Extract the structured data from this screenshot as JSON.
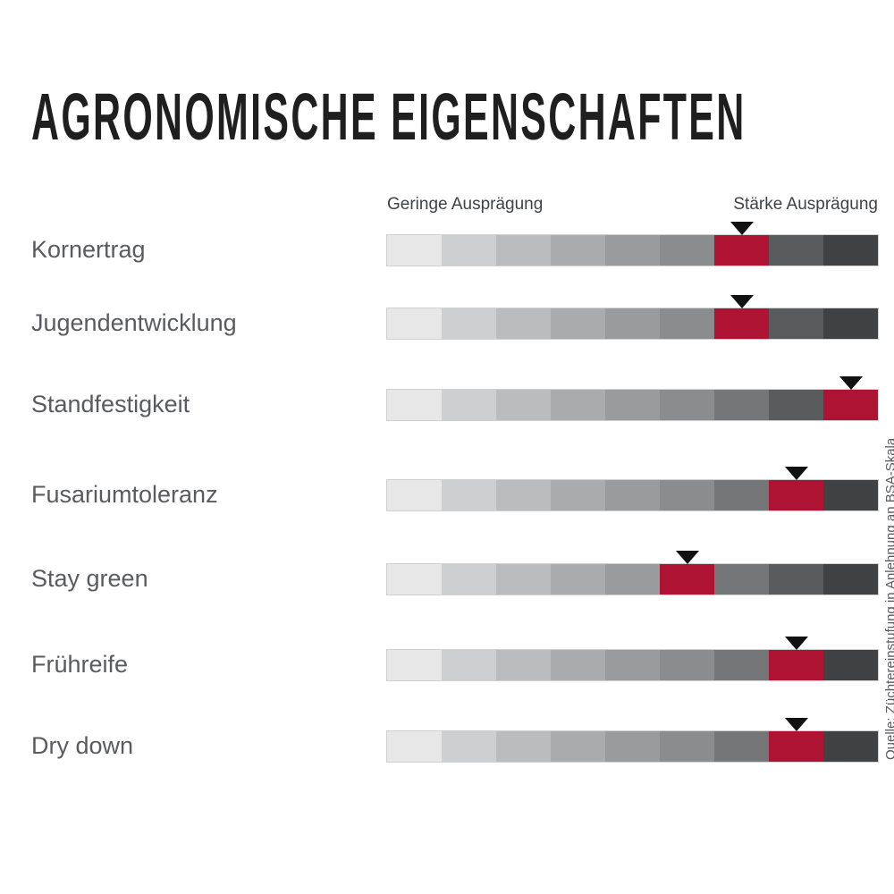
{
  "title": "AGRONOMISCHE EIGENSCHAFTEN",
  "legend": {
    "low": "Geringe Ausprägung",
    "high": "Stärke Ausprägung"
  },
  "source_note": "Quelle: Züchtereinstufung in Anlehnung an BSA-Skala",
  "colors": {
    "accent_red": "#AE1333",
    "marker_black": "#111111",
    "label_gray": "#595B5E",
    "legend_gray": "#3F4245",
    "title_black": "#1F1F1F",
    "segment_grays": [
      "#E7E7E8",
      "#CECFD1",
      "#BBBCBE",
      "#AAABAD",
      "#9A9B9D",
      "#8B8C8E",
      "#757678",
      "#5A5B5D",
      "#404143"
    ]
  },
  "chart_data": {
    "type": "bar",
    "subtype": "segmented-rating-scale",
    "scale_segments": 9,
    "scale_range": [
      1,
      9
    ],
    "title": "Agronomische Eigenschaften",
    "xlabel_low": "Geringe Ausprägung",
    "xlabel_high": "Stärke Ausprägung",
    "categories": [
      "Kornertrag",
      "Jugendentwicklung",
      "Standfestigkeit",
      "Fusariumtoleranz",
      "Stay green",
      "Frühreife",
      "Dry down"
    ],
    "values": [
      7,
      7,
      9,
      8,
      6,
      8,
      8
    ],
    "marker": "black triangle pointing down at rated segment",
    "highlight": "rated segment filled red",
    "legend_position": "above-bar-left-and-right",
    "grid": false
  }
}
